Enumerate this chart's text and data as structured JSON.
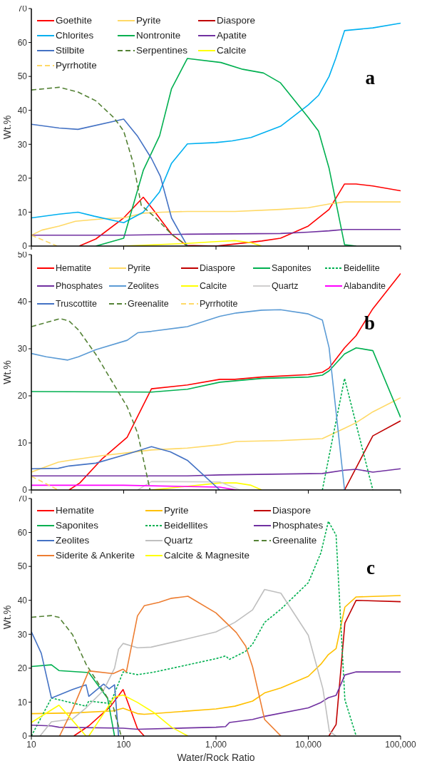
{
  "chart_data": [
    {
      "type": "line",
      "ylabel": "Wt.%",
      "xlim": [
        10,
        100000
      ],
      "xticks": [
        {
          "value": 10,
          "label": null
        },
        {
          "value": 100,
          "label": null
        },
        {
          "value": 1000,
          "label": null
        },
        {
          "value": 10000,
          "label": null
        },
        {
          "value": 100000,
          "label": null
        }
      ],
      "log": "x",
      "ylim": [
        0,
        70
      ],
      "yticks": [
        0,
        10,
        20,
        30,
        40,
        50,
        60,
        70
      ],
      "tick_labels": "y",
      "legend": "top left",
      "marker": "none",
      "annotations": [
        "a"
      ],
      "series": [
        {
          "name": "Goethite",
          "color": "#ff0000",
          "x": [
            33,
            50,
            100,
            163,
            213,
            330,
            478,
            1000,
            3130,
            5000,
            10000,
            16800,
            24700,
            33000,
            50000,
            100000
          ],
          "values": [
            0,
            2.1,
            8.3,
            14.4,
            10.4,
            3.5,
            0.2,
            0,
            1.5,
            2.3,
            5.9,
            10.8,
            18.3,
            18.3,
            17.7,
            16.3
          ]
        },
        {
          "name": "Pyrite",
          "color": "#ffd966",
          "x": [
            10,
            13,
            20,
            30,
            63,
            100,
            163,
            260,
            490,
            1600,
            5000,
            10000,
            16800,
            24700,
            100000
          ],
          "values": [
            3.2,
            4.7,
            5.9,
            7.3,
            8.1,
            8.3,
            9.7,
            10,
            10.2,
            10.2,
            10.8,
            11.3,
            12.4,
            13,
            13
          ]
        },
        {
          "name": "Diaspore",
          "color": "#c00000",
          "values": [
            null
          ]
        },
        {
          "name": "Chlorites",
          "color": "#00b0f0",
          "x": [
            10,
            20,
            32,
            48,
            100,
            163,
            245,
            330,
            490,
            1000,
            1500,
            2400,
            5000,
            10000,
            12900,
            16800,
            19800,
            24700,
            50000,
            100000
          ],
          "values": [
            8.3,
            9.4,
            10,
            8.8,
            6.9,
            10,
            16,
            24.4,
            30.1,
            30.5,
            31,
            32,
            35.3,
            41.6,
            44.4,
            50,
            55.3,
            63.5,
            64.3,
            65.7
          ]
        },
        {
          "name": "Nontronite",
          "color": "#00b050",
          "x": [
            50,
            100,
            163,
            245,
            330,
            490,
            1130,
            1950,
            3270,
            5000,
            10000,
            12900,
            16800,
            24700,
            33000
          ],
          "values": [
            0,
            2.3,
            22.3,
            32.5,
            46.4,
            55.3,
            54.1,
            52.1,
            51,
            48.1,
            37.9,
            33.9,
            22.9,
            0.4,
            0
          ]
        },
        {
          "name": "Apatite",
          "color": "#7030a0",
          "x": [
            10,
            100,
            490,
            5000,
            10000,
            16800,
            24700,
            100000
          ],
          "values": [
            3.2,
            3.2,
            3.5,
            3.7,
            4.1,
            4.5,
            4.9,
            4.9
          ]
        },
        {
          "name": "Stilbite",
          "color": "#4472c4",
          "x": [
            10,
            20,
            32,
            100,
            142,
            200,
            250,
            330,
            490
          ],
          "values": [
            35.9,
            34.8,
            34.4,
            37.4,
            32.3,
            25.8,
            20.5,
            8.3,
            0
          ]
        },
        {
          "name": "Serpentines",
          "color": "#548235",
          "line_style": "dashed",
          "x": [
            10,
            20,
            32,
            50,
            78,
            100,
            128,
            155,
            213,
            330,
            490
          ],
          "values": [
            46,
            46.8,
            45.4,
            42.8,
            37.9,
            33.9,
            24.1,
            12,
            8.8,
            3.5,
            0
          ]
        },
        {
          "name": "Calcite",
          "color": "#ffff00",
          "x": [
            100,
            490,
            1000,
            1600,
            2400,
            3130
          ],
          "values": [
            0,
            0.8,
            1.3,
            1.6,
            1,
            0
          ]
        },
        {
          "name": "Pyrrhotite",
          "color": "#ffd966",
          "line_style": "dashed",
          "x": [
            10,
            19
          ],
          "values": [
            3.2,
            0
          ]
        }
      ]
    },
    {
      "type": "line",
      "ylabel": "Wt.%",
      "xlim": [
        10,
        100000
      ],
      "xticks": [
        {
          "value": 10,
          "label": null
        },
        {
          "value": 100,
          "label": null
        },
        {
          "value": 1000,
          "label": null
        },
        {
          "value": 10000,
          "label": null
        },
        {
          "value": 100000,
          "label": null
        }
      ],
      "log": "x",
      "ylim": [
        0,
        50
      ],
      "yticks": [
        0,
        10,
        20,
        30,
        40,
        50
      ],
      "tick_labels": "y",
      "legend": "top left",
      "marker": "none",
      "annotations": [
        "b"
      ],
      "series": [
        {
          "name": "Hematite",
          "color": "#ff0000",
          "x": [
            25.6,
            33.5,
            59,
            109,
            200,
            490,
            1100,
            1600,
            3130,
            10000,
            14200,
            16800,
            24700,
            33000,
            50000,
            100000
          ],
          "values": [
            0,
            1.5,
            6.7,
            11.2,
            21.5,
            22.3,
            23.5,
            23.5,
            24,
            24.5,
            25,
            25.9,
            30.2,
            32.8,
            38.5,
            46
          ]
        },
        {
          "name": "Pyrite",
          "color": "#ffd966",
          "x": [
            10,
            19.6,
            25.6,
            59,
            109,
            200,
            490,
            1100,
            1660,
            5000,
            14200,
            24700,
            33000,
            50000,
            100000
          ],
          "values": [
            3.8,
            5.9,
            6.3,
            7.3,
            7.9,
            8.5,
            8.9,
            9.6,
            10.3,
            10.5,
            10.9,
            13.1,
            14.3,
            16.6,
            19.6
          ]
        },
        {
          "name": "Diaspore",
          "color": "#c00000",
          "x": [
            24700,
            50000,
            100000
          ],
          "values": [
            0,
            11.5,
            14.7
          ]
        },
        {
          "name": "Saponites",
          "color": "#00b050",
          "x": [
            10,
            200,
            490,
            1100,
            3130,
            10000,
            14200,
            16800,
            24700,
            33000,
            50000,
            100000
          ],
          "values": [
            20.9,
            20.8,
            21.4,
            22.9,
            23.7,
            24,
            24.4,
            25.3,
            28.9,
            30.2,
            29.6,
            15.4
          ]
        },
        {
          "name": "Beidellite",
          "color": "#00b050",
          "line_style": "dotted",
          "x": [
            14200,
            24700,
            50000
          ],
          "values": [
            0,
            23.7,
            0
          ]
        },
        {
          "name": "Phosphates",
          "color": "#7030a0",
          "x": [
            10,
            490,
            1100,
            14200,
            24700,
            33000,
            50000,
            100000
          ],
          "values": [
            3,
            3,
            3.2,
            3.5,
            4.2,
            4.4,
            3.8,
            4.5
          ]
        },
        {
          "name": "Zeolites",
          "color": "#5b9bd5",
          "x": [
            10,
            14.5,
            24.8,
            32.4,
            50,
            109,
            142,
            200,
            490,
            1100,
            1660,
            3130,
            5000,
            10000,
            14200,
            16800,
            24700
          ],
          "values": [
            29,
            28.3,
            27.6,
            28.3,
            29.8,
            31.8,
            33.4,
            33.7,
            34.7,
            36.9,
            37.6,
            38.2,
            38.3,
            37.4,
            36.1,
            30.2,
            0
          ]
        },
        {
          "name": "Calcite",
          "color": "#ffff00",
          "x": [
            200,
            1100,
            1660,
            2400,
            3130
          ],
          "values": [
            0,
            1.5,
            1.5,
            1,
            0
          ]
        },
        {
          "name": "Quartz",
          "color": "#d0cece",
          "x": [
            142,
            200,
            1100,
            1830
          ],
          "values": [
            0,
            1.8,
            1.7,
            0
          ]
        },
        {
          "name": "Alabandite",
          "color": "#ff00ff",
          "x": [
            10,
            100,
            1100,
            1660
          ],
          "values": [
            1,
            1,
            0.6,
            0
          ]
        },
        {
          "name": "Truscottite",
          "color": "#4472c4",
          "x": [
            10,
            19.6,
            25.6,
            50,
            109,
            200,
            320,
            490,
            1100
          ],
          "values": [
            4.5,
            4.6,
            5.1,
            5.7,
            7.6,
            9.2,
            8.1,
            6.3,
            0
          ]
        },
        {
          "name": "Greenalite",
          "color": "#548235",
          "line_style": "dashed",
          "x": [
            10,
            20.5,
            25.6,
            32.4,
            50,
            109,
            142,
            193
          ],
          "values": [
            34.7,
            36.4,
            35.9,
            34,
            28.8,
            17.7,
            12,
            0
          ]
        },
        {
          "name": "Pyrrhotite",
          "color": "#ffd966",
          "line_style": "dashed",
          "x": [
            10,
            19.6
          ],
          "values": [
            2.9,
            0
          ]
        }
      ]
    },
    {
      "type": "line",
      "ylabel": "Wt.%",
      "xlabel": "Water/Rock Ratio",
      "xlim": [
        10,
        100000
      ],
      "xticks": [
        10,
        100,
        {
          "value": 1000,
          "label": "1,000"
        },
        {
          "value": 10000,
          "label": "10,000"
        },
        {
          "value": 100000,
          "label": "100,000"
        }
      ],
      "log": "x",
      "ylim": [
        0,
        70
      ],
      "yticks": [
        0,
        10,
        20,
        30,
        40,
        50,
        60,
        70
      ],
      "legend": "top left",
      "marker": "none",
      "annotations": [
        "c"
      ],
      "series": [
        {
          "name": "Hematite",
          "color": "#ff0000",
          "x": [
            28.8,
            41.9,
            71.8,
            98.6,
            141,
            167
          ],
          "values": [
            0,
            3,
            8.7,
            13.7,
            2.2,
            0
          ]
        },
        {
          "name": "Pyrite",
          "color": "#ffc000",
          "x": [
            10,
            27.9,
            76.9,
            98.6,
            141,
            167,
            1000,
            1600,
            2490,
            3360,
            5050,
            10000,
            13700,
            16500,
            20000,
            24900,
            33000,
            100000
          ],
          "values": [
            6.6,
            6.8,
            7.4,
            8.2,
            6.6,
            6.4,
            8,
            8.8,
            10.3,
            12.7,
            14.2,
            17.6,
            21.2,
            24,
            25.8,
            38,
            41,
            41.4
          ]
        },
        {
          "name": "Diaspore",
          "color": "#c00000",
          "x": [
            16700,
            20000,
            24900,
            33000,
            100000
          ],
          "values": [
            0,
            3.4,
            33.3,
            40,
            39.6
          ]
        },
        {
          "name": "Saponites",
          "color": "#00b050",
          "x": [
            10,
            16.5,
            19.9,
            41.9,
            67,
            79.6
          ],
          "values": [
            20.5,
            21,
            19.3,
            18.7,
            11.1,
            0
          ]
        },
        {
          "name": "Beidellites",
          "color": "#00b050",
          "line_style": "dotted",
          "x": [
            10,
            16.5,
            39.1,
            41.9,
            71.8,
            98.6,
            141,
            210,
            1000,
            1270,
            1400,
            2100,
            2490,
            3360,
            5050,
            10000,
            13700,
            16500,
            20000,
            24900,
            33000
          ],
          "values": [
            0,
            11.2,
            8.8,
            10.3,
            9.6,
            18.9,
            18.1,
            18.8,
            22.8,
            23.6,
            22.6,
            25,
            27.1,
            33.5,
            37.4,
            45.2,
            54,
            63.3,
            59.2,
            10.7,
            0
          ]
        },
        {
          "name": "Phosphates",
          "color": "#7030a0",
          "x": [
            10,
            16.5,
            19.9,
            98.6,
            141,
            1000,
            1270,
            1400,
            2490,
            3360,
            10000,
            13700,
            16500,
            20000,
            24900,
            33000,
            100000
          ],
          "values": [
            3.2,
            3,
            2.6,
            2.3,
            2,
            2.6,
            2.8,
            4,
            4.9,
            5.8,
            8.3,
            9.9,
            11.3,
            12,
            18,
            18.9,
            18.9
          ]
        },
        {
          "name": "Zeolites",
          "color": "#4472c4",
          "x": [
            10,
            12.8,
            16.5,
            27.9,
            39.1,
            41.9,
            60.6,
            69.4,
            79.6,
            88
          ],
          "values": [
            30.7,
            24.4,
            11.2,
            13.7,
            15.1,
            11.7,
            15.3,
            13.9,
            15.1,
            0
          ]
        },
        {
          "name": "Quartz",
          "color": "#bfbfbf",
          "x": [
            12.4,
            16.5,
            27.9,
            39.1,
            60.6,
            79.6,
            88,
            98.6,
            141,
            198,
            414,
            1000,
            1600,
            2490,
            3360,
            5050,
            10000,
            14400,
            16900,
            20000
          ],
          "values": [
            0,
            4.2,
            5,
            8.3,
            13.5,
            20,
            25.6,
            27.3,
            26,
            26.2,
            28.2,
            30.7,
            33.5,
            37.2,
            43.2,
            42.1,
            29.7,
            13.9,
            1.4,
            0
          ]
        },
        {
          "name": "Greenalite",
          "color": "#548235",
          "line_style": "dashed",
          "x": [
            10,
            16.5,
            19.9,
            27.9,
            39.1,
            76.9,
            94
          ],
          "values": [
            35,
            35.5,
            35,
            29.9,
            21.2,
            8.7,
            0
          ]
        },
        {
          "name": "Siderite & Ankerite",
          "color": "#ed7d31",
          "x": [
            20.2,
            27.9,
            41.9,
            76.9,
            98.6,
            107,
            141,
            167,
            242,
            330,
            497,
            1000,
            1660,
            2100,
            2490,
            3360,
            5050
          ],
          "values": [
            0,
            7.8,
            19.2,
            18.4,
            19.7,
            18.9,
            35.4,
            38.4,
            39.4,
            40.6,
            41.2,
            36.3,
            30.5,
            26.5,
            20.4,
            4.9,
            0
          ]
        },
        {
          "name": "Calcite & Magnesite",
          "color": "#ffff00",
          "x": [
            10,
            19.9,
            27.9,
            39.1,
            41.9,
            79.6,
            98.6,
            141,
            210,
            330,
            497
          ],
          "values": [
            4,
            9.1,
            4.6,
            0,
            0,
            11.5,
            12.1,
            9.9,
            7,
            2.6,
            0
          ]
        }
      ]
    }
  ]
}
